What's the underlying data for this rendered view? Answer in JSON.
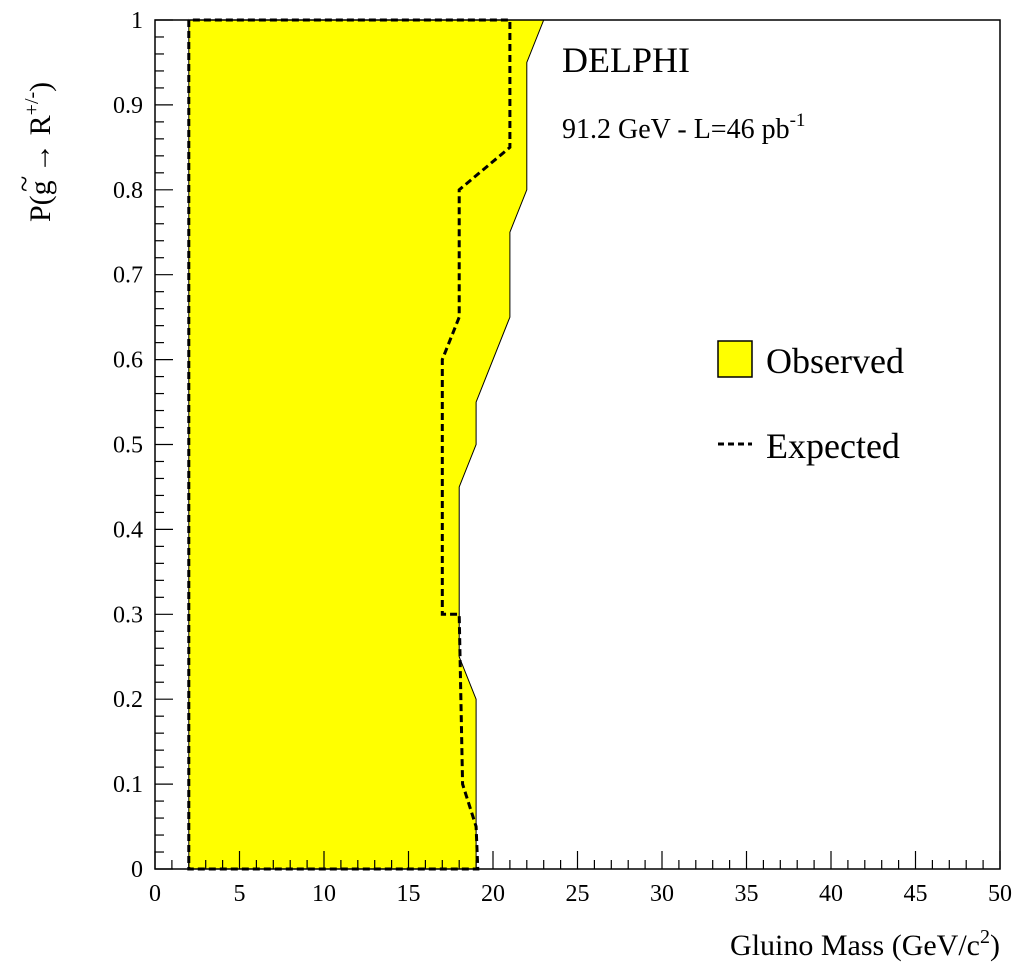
{
  "chart_data": {
    "type": "area",
    "experiment": "DELPHI",
    "subtitle_main": "91.2 GeV - L=46 pb",
    "subtitle_sup": "-1",
    "xlabel_main": "Gluino Mass (GeV/c",
    "xlabel_sup": "2",
    "xlabel_end": ")",
    "ylabel_main": "P(g → R",
    "ylabel_tilde": "~",
    "ylabel_sup": "+/-",
    "ylabel_end": ")",
    "xlim": [
      0,
      50
    ],
    "ylim": [
      0,
      1
    ],
    "x_ticks": [
      "0",
      "5",
      "10",
      "15",
      "20",
      "25",
      "30",
      "35",
      "40",
      "45",
      "50"
    ],
    "y_ticks": [
      "0",
      "0.1",
      "0.2",
      "0.3",
      "0.4",
      "0.5",
      "0.6",
      "0.7",
      "0.8",
      "0.9",
      "1"
    ],
    "grid": false,
    "legend_position": "right-middle",
    "series": [
      {
        "name": "Observed",
        "style": "filled",
        "color": "#ffff00",
        "left_edge_x": 2,
        "right_edge": [
          {
            "y": 0,
            "x": 19
          },
          {
            "y": 0.2,
            "x": 19
          },
          {
            "y": 0.25,
            "x": 18
          },
          {
            "y": 0.45,
            "x": 18
          },
          {
            "y": 0.5,
            "x": 19
          },
          {
            "y": 0.55,
            "x": 19
          },
          {
            "y": 0.65,
            "x": 21
          },
          {
            "y": 0.75,
            "x": 21
          },
          {
            "y": 0.8,
            "x": 22
          },
          {
            "y": 0.95,
            "x": 22
          },
          {
            "y": 1.0,
            "x": 23
          }
        ]
      },
      {
        "name": "Expected",
        "style": "dashed",
        "color": "#000000",
        "left_edge_x": 2,
        "right_edge": [
          {
            "y": 0,
            "x": 19.1
          },
          {
            "y": 0.05,
            "x": 19
          },
          {
            "y": 0.1,
            "x": 18.2
          },
          {
            "y": 0.3,
            "x": 18
          },
          {
            "y": 0.3,
            "x": 17
          },
          {
            "y": 0.6,
            "x": 17
          },
          {
            "y": 0.65,
            "x": 18
          },
          {
            "y": 0.8,
            "x": 18
          },
          {
            "y": 0.85,
            "x": 21
          },
          {
            "y": 1.0,
            "x": 21
          }
        ]
      }
    ]
  }
}
